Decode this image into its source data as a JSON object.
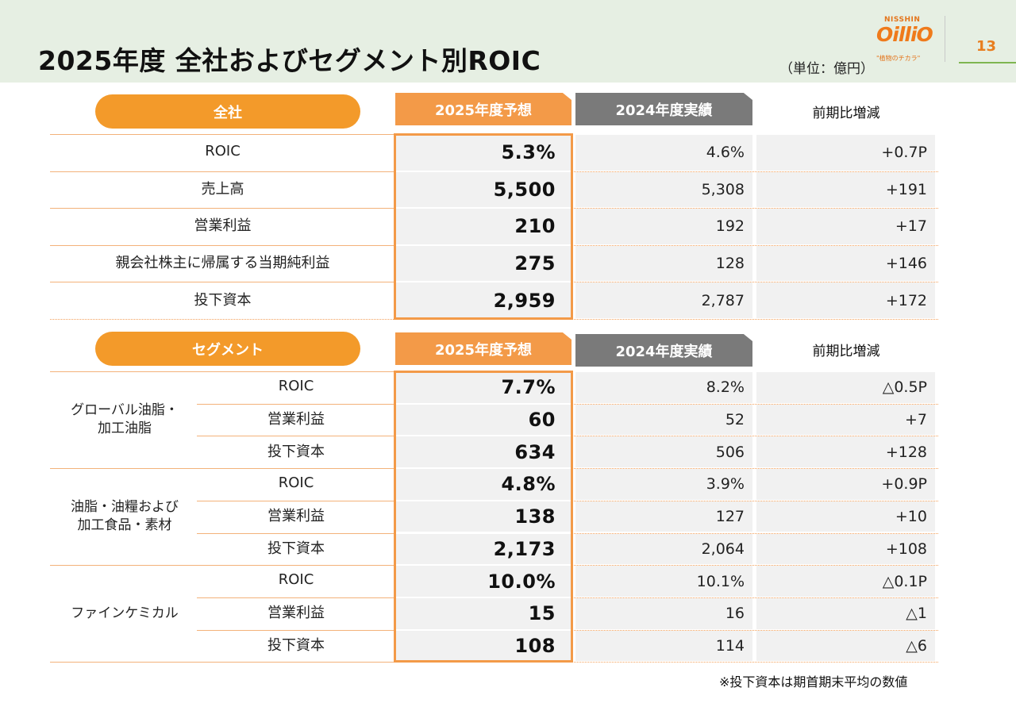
{
  "header": {
    "title": "2025年度 全社およびセグメント別ROIC",
    "unit": "（単位：億円）",
    "page_number": "13",
    "logo": {
      "brand_top": "NISSHIN",
      "brand_main": "OilliO",
      "tagline": "\"植物のチカラ\""
    }
  },
  "columns": {
    "forecast": "2025年度予想",
    "actual": "2024年度実績",
    "diff": "前期比増減"
  },
  "company": {
    "label": "全社",
    "rows": [
      {
        "label": "ROIC",
        "forecast": "5.3%",
        "actual": "4.6%",
        "diff": "+0.7P"
      },
      {
        "label": "売上高",
        "forecast": "5,500",
        "actual": "5,308",
        "diff": "+191"
      },
      {
        "label": "営業利益",
        "forecast": "210",
        "actual": "192",
        "diff": "+17"
      },
      {
        "label": "親会社株主に帰属する当期純利益",
        "forecast": "275",
        "actual": "128",
        "diff": "+146"
      },
      {
        "label": "投下資本",
        "forecast": "2,959",
        "actual": "2,787",
        "diff": "+172"
      }
    ]
  },
  "segment": {
    "label": "セグメント",
    "groups": [
      {
        "name": "グローバル油脂・\n加工油脂",
        "rows": [
          {
            "label": "ROIC",
            "forecast": "7.7%",
            "actual": "8.2%",
            "diff": "△0.5P"
          },
          {
            "label": "営業利益",
            "forecast": "60",
            "actual": "52",
            "diff": "+7"
          },
          {
            "label": "投下資本",
            "forecast": "634",
            "actual": "506",
            "diff": "+128"
          }
        ]
      },
      {
        "name": "油脂・油糧および\n加工食品・素材",
        "rows": [
          {
            "label": "ROIC",
            "forecast": "4.8%",
            "actual": "3.9%",
            "diff": "+0.9P"
          },
          {
            "label": "営業利益",
            "forecast": "138",
            "actual": "127",
            "diff": "+10"
          },
          {
            "label": "投下資本",
            "forecast": "2,173",
            "actual": "2,064",
            "diff": "+108"
          }
        ]
      },
      {
        "name": "ファインケミカル",
        "rows": [
          {
            "label": "ROIC",
            "forecast": "10.0%",
            "actual": "10.1%",
            "diff": "△0.1P"
          },
          {
            "label": "営業利益",
            "forecast": "15",
            "actual": "16",
            "diff": "△1"
          },
          {
            "label": "投下資本",
            "forecast": "108",
            "actual": "114",
            "diff": "△6"
          }
        ]
      }
    ]
  },
  "footnote": "※投下資本は期首期末平均の数値",
  "colors": {
    "accent_orange": "#f39a2a",
    "forecast_header": "#f39a48",
    "actual_header": "#7a7a7a",
    "header_bg": "#e6efe3",
    "page_line": "#7fb551"
  }
}
